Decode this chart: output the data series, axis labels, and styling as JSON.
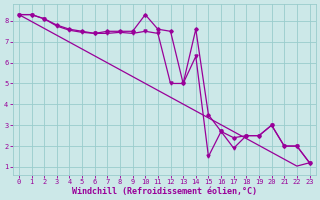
{
  "x_data": [
    0,
    1,
    2,
    3,
    4,
    5,
    6,
    7,
    8,
    9,
    10,
    11,
    12,
    13,
    14,
    15,
    16,
    17,
    18,
    19,
    20,
    21,
    22,
    23
  ],
  "line_diamonds": [
    8.3,
    8.3,
    8.1,
    7.8,
    7.6,
    7.5,
    7.4,
    7.5,
    7.5,
    7.5,
    8.3,
    7.6,
    7.5,
    5.0,
    7.6,
    3.5,
    2.7,
    2.4,
    2.5,
    2.5,
    3.0,
    2.0,
    2.0,
    1.2
  ],
  "line_triangles": [
    8.3,
    8.3,
    8.1,
    7.75,
    7.55,
    7.45,
    7.4,
    7.4,
    7.45,
    7.4,
    7.5,
    7.4,
    5.0,
    5.0,
    6.3,
    1.5,
    2.7,
    1.9,
    2.5,
    2.5,
    3.0,
    2.0,
    2.0,
    1.2
  ],
  "line_straight": [
    8.3,
    7.97,
    7.64,
    7.31,
    6.98,
    6.65,
    6.32,
    5.99,
    5.66,
    5.33,
    5.0,
    4.67,
    4.34,
    4.01,
    3.68,
    3.35,
    3.02,
    2.69,
    2.36,
    2.03,
    1.7,
    1.37,
    1.04,
    1.2
  ],
  "color": "#990099",
  "bg_color": "#cce8e8",
  "grid_color": "#99cccc",
  "xlabel": "Windchill (Refroidissement éolien,°C)",
  "xlim_min": -0.5,
  "xlim_max": 23.5,
  "ylim_min": 0.6,
  "ylim_max": 8.8,
  "xticks": [
    0,
    1,
    2,
    3,
    4,
    5,
    6,
    7,
    8,
    9,
    10,
    11,
    12,
    13,
    14,
    15,
    16,
    17,
    18,
    19,
    20,
    21,
    22,
    23
  ],
  "yticks": [
    1,
    2,
    3,
    4,
    5,
    6,
    7,
    8
  ],
  "tick_fontsize": 5.0,
  "xlabel_fontsize": 6.0
}
